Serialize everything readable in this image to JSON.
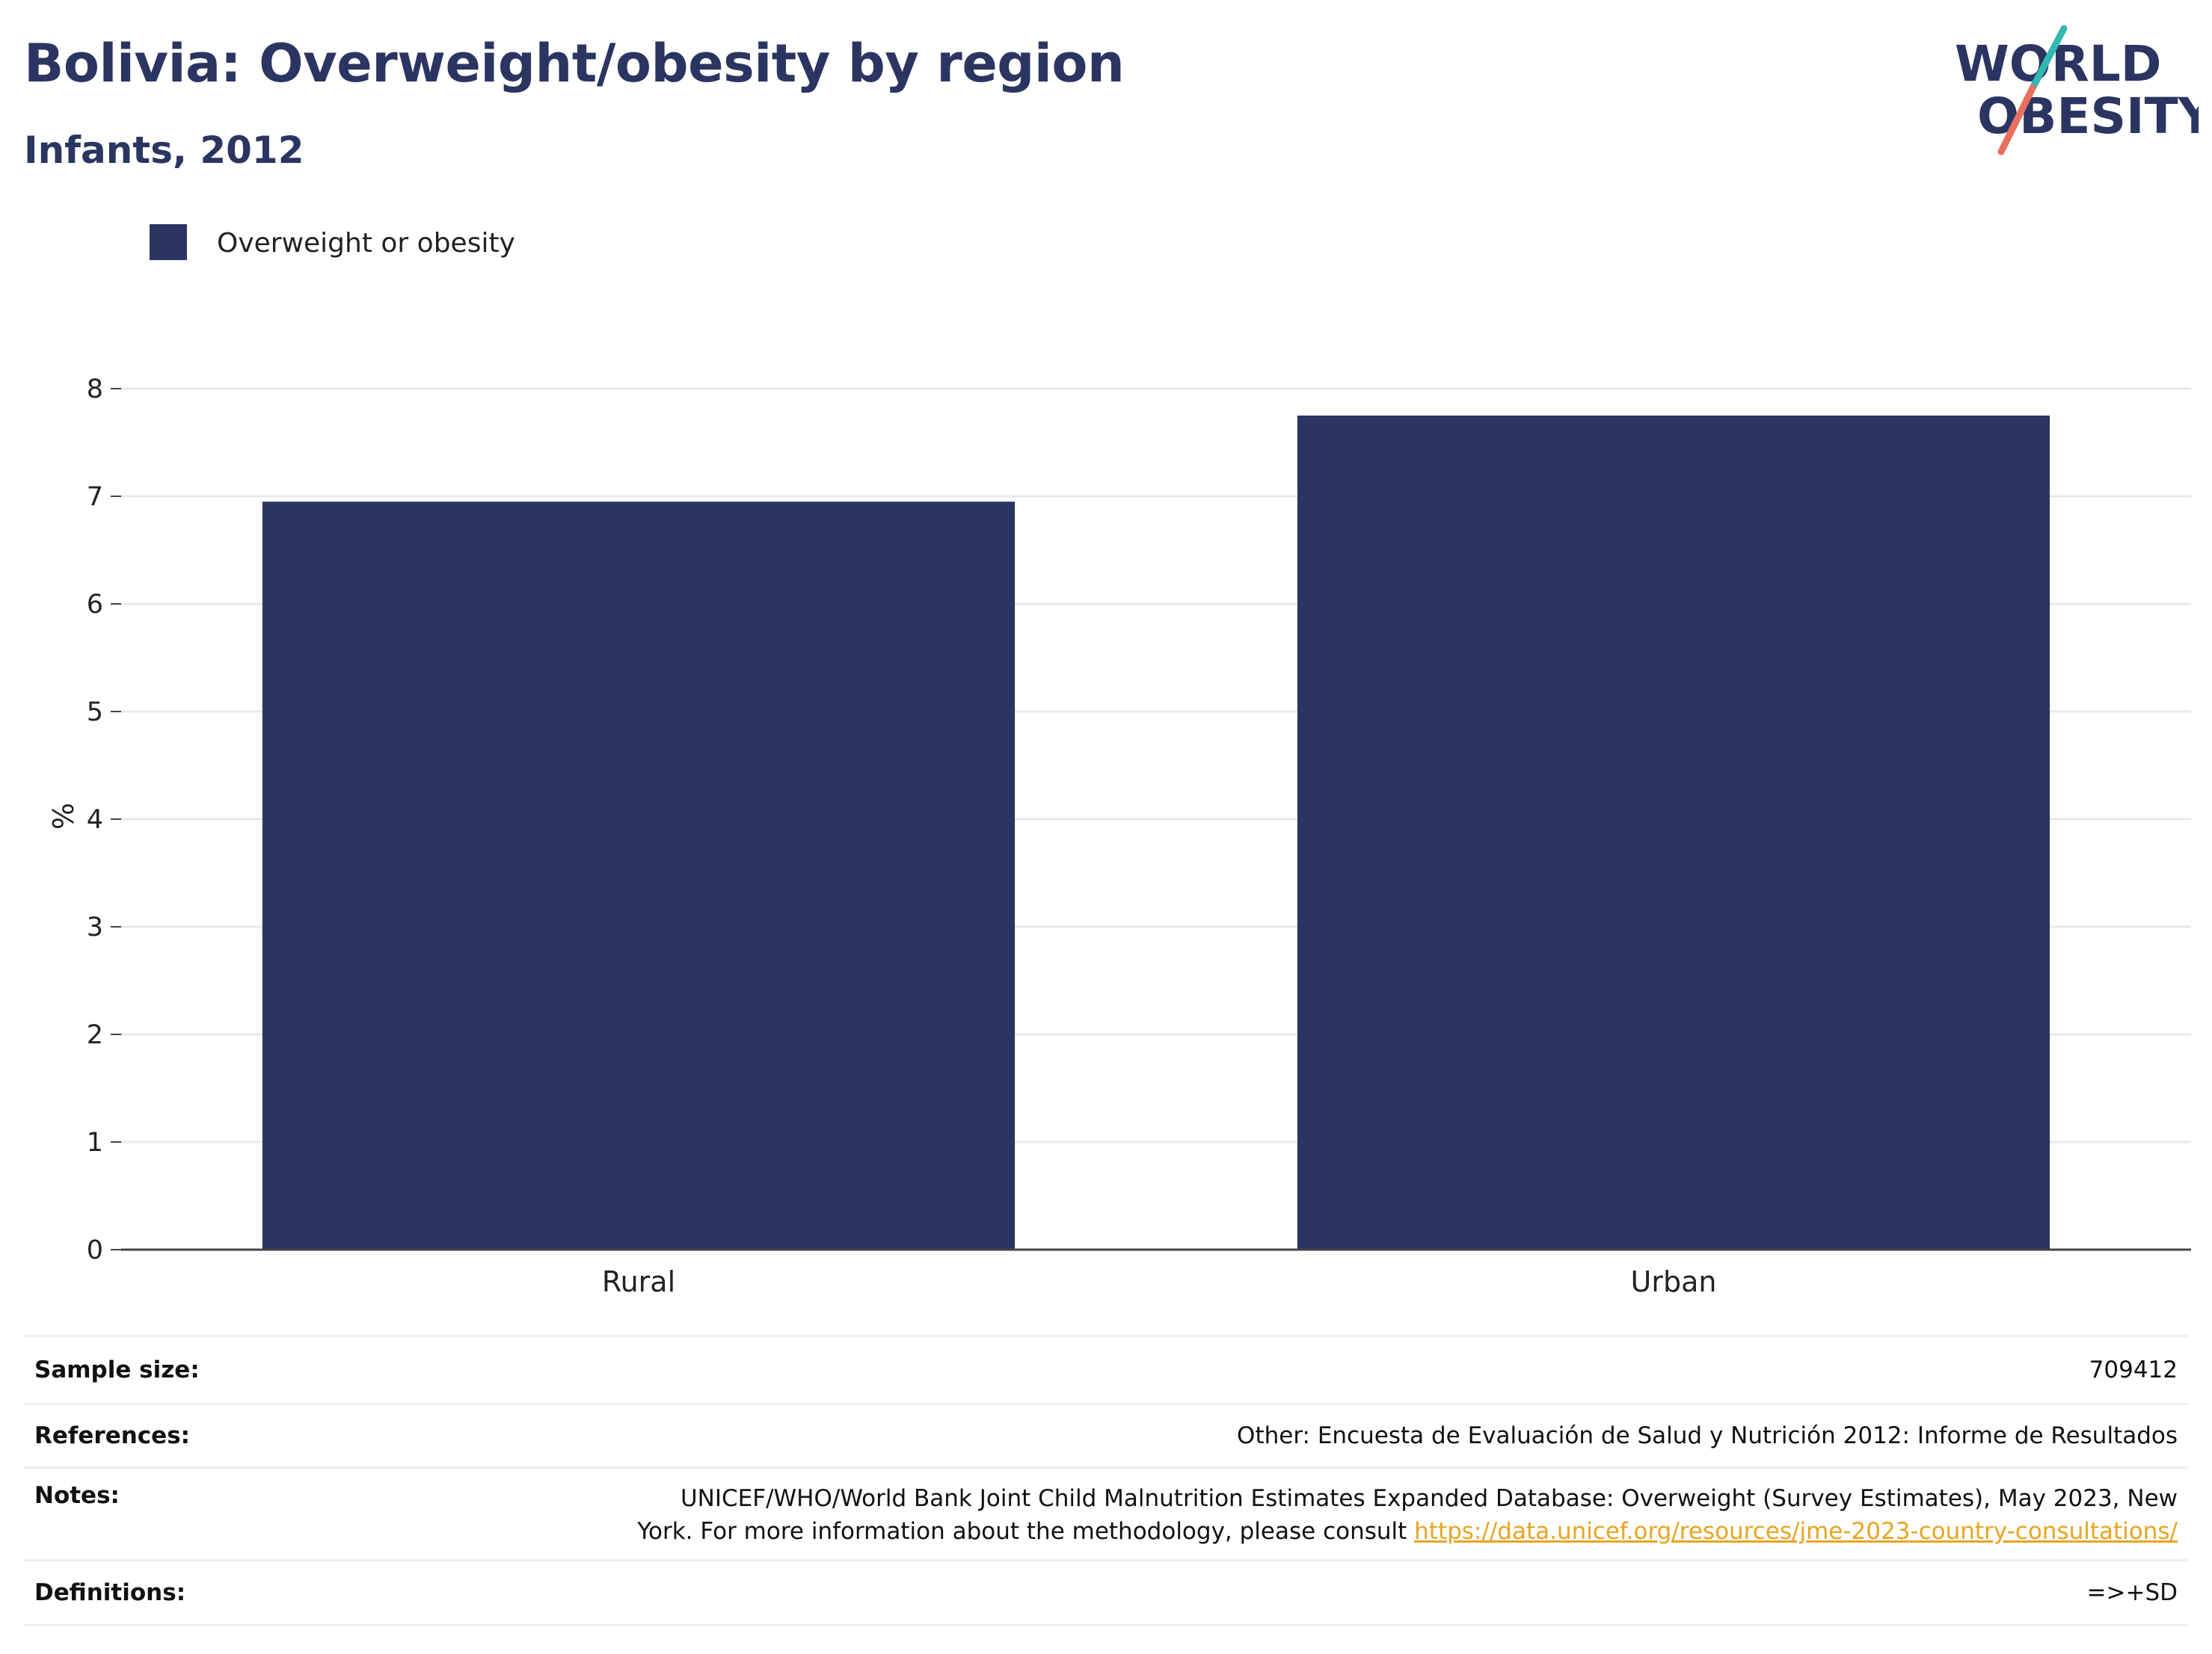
{
  "header": {
    "title": "Bolivia: Overweight/obesity by region",
    "subtitle": "Infants, 2012"
  },
  "logo": {
    "line1": "WORLD",
    "line2": "OBESITY",
    "colors": {
      "text": "#2a3561",
      "teal": "#33b8b0",
      "coral": "#e8705f"
    }
  },
  "chart_data": {
    "type": "bar",
    "title": "Bolivia: Overweight/obesity by region",
    "subtitle": "Infants, 2012",
    "categories": [
      "Rural",
      "Urban"
    ],
    "series": [
      {
        "name": "Overweight or obesity",
        "values": [
          6.95,
          7.75
        ],
        "color": "#2a3561"
      }
    ],
    "ylabel": "%",
    "xlabel": "",
    "ylim": [
      0,
      8
    ],
    "yticks": [
      0,
      1,
      2,
      3,
      4,
      5,
      6,
      7,
      8
    ],
    "grid": true,
    "legend_position": "top-left"
  },
  "info": {
    "sample_size_label": "Sample size:",
    "sample_size_value": "709412",
    "references_label": "References:",
    "references_value": "Other: Encuesta de Evaluación de Salud y Nutrición 2012: Informe de Resultados",
    "notes_label": "Notes:",
    "notes_value_line1": "UNICEF/WHO/World Bank Joint Child Malnutrition Estimates Expanded Database: Overweight (Survey Estimates), May 2023, New",
    "notes_value_line2": "York. For more information about the methodology, please consult ",
    "notes_link": "https://data.unicef.org/resources/jme-2023-country-consultations/",
    "definitions_label": "Definitions:",
    "definitions_value": "=>+SD"
  }
}
